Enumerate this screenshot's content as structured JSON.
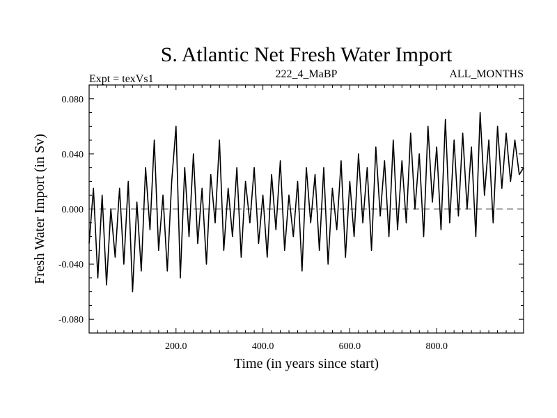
{
  "chart_data": {
    "type": "line",
    "title": "S. Atlantic Net Fresh Water Import",
    "subtitle_left": "Expt = texVs1",
    "subtitle_center": "222_4_MaBP",
    "subtitle_right": "ALL_MONTHS",
    "xlabel": "Time (in years since start)",
    "ylabel": "Fresh Water Import (in Sv)",
    "xlim": [
      0,
      1000
    ],
    "ylim": [
      -0.09,
      0.09
    ],
    "x_ticks": [
      200,
      400,
      600,
      800
    ],
    "x_tick_labels": [
      "200.0",
      "400.0",
      "600.0",
      "800.0"
    ],
    "y_ticks": [
      0.08,
      0.04,
      0.0,
      -0.04,
      -0.08
    ],
    "y_tick_labels": [
      "0.080",
      "0.040",
      "0.000",
      "-0.040",
      "-0.080"
    ],
    "reference_line": {
      "y": 0.0,
      "style": "dashed"
    },
    "series": [
      {
        "name": "Net Fresh Water Import",
        "x_start": 0,
        "x_step": 10,
        "values": [
          -0.025,
          0.015,
          -0.05,
          0.01,
          -0.055,
          0.0,
          -0.035,
          0.015,
          -0.04,
          0.02,
          -0.06,
          0.005,
          -0.045,
          0.03,
          -0.015,
          0.05,
          -0.03,
          0.01,
          -0.045,
          0.02,
          0.06,
          -0.05,
          0.03,
          -0.02,
          0.04,
          -0.025,
          0.015,
          -0.04,
          0.025,
          -0.01,
          0.05,
          -0.03,
          0.015,
          -0.02,
          0.03,
          -0.035,
          0.02,
          -0.01,
          0.03,
          -0.025,
          0.01,
          -0.035,
          0.025,
          -0.015,
          0.035,
          -0.03,
          0.01,
          -0.02,
          0.02,
          -0.045,
          0.03,
          -0.01,
          0.025,
          -0.03,
          0.03,
          -0.04,
          0.015,
          -0.015,
          0.035,
          -0.035,
          0.02,
          -0.02,
          0.04,
          -0.01,
          0.03,
          -0.03,
          0.045,
          -0.005,
          0.035,
          -0.02,
          0.05,
          -0.015,
          0.035,
          -0.01,
          0.055,
          0.0,
          0.04,
          -0.02,
          0.06,
          0.005,
          0.045,
          -0.015,
          0.065,
          -0.01,
          0.05,
          -0.005,
          0.055,
          0.0,
          0.045,
          -0.02,
          0.07,
          0.01,
          0.05,
          -0.01,
          0.06,
          0.015,
          0.055,
          0.02,
          0.05,
          0.025,
          0.03
        ]
      }
    ],
    "line_color": "#000000"
  }
}
